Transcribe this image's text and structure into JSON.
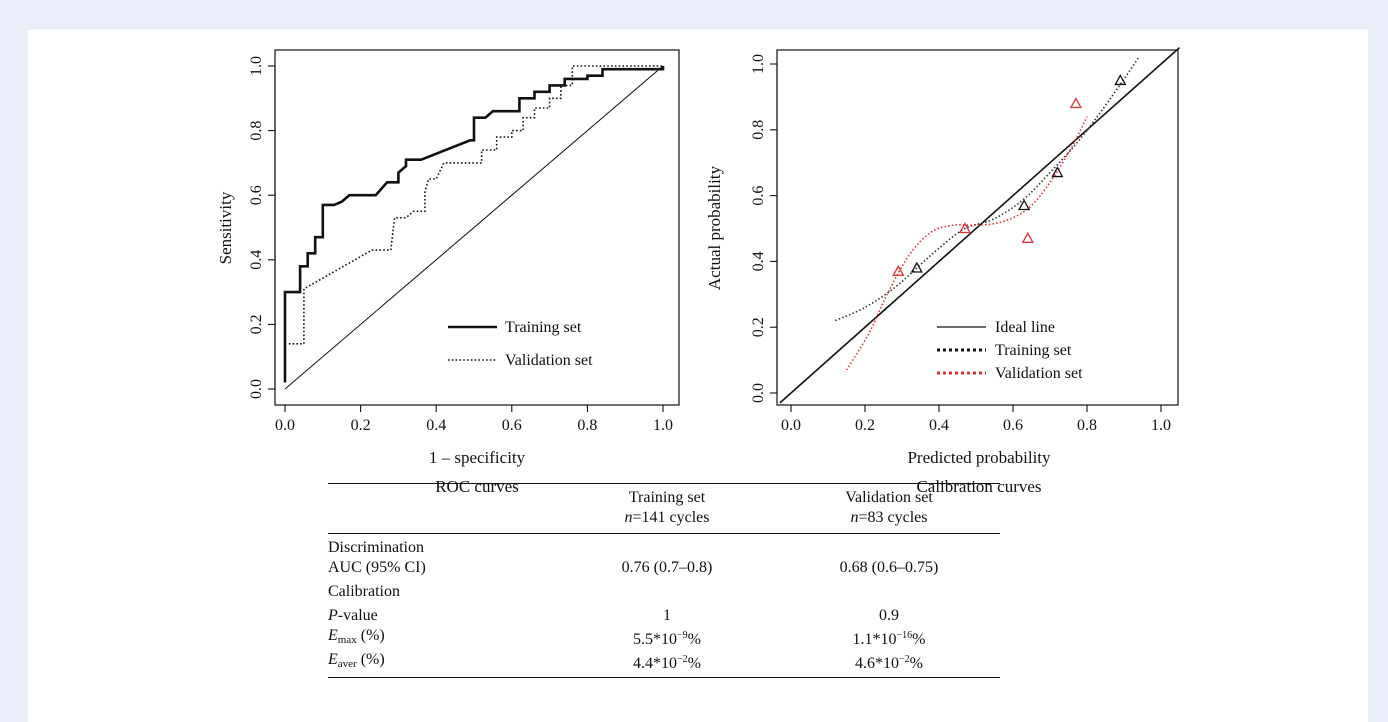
{
  "chart_data": [
    {
      "type": "line",
      "caption": "ROC curves",
      "xlabel": "1 – specificity",
      "ylabel": "Sensitivity",
      "xlim": [
        0,
        1
      ],
      "ylim": [
        0,
        1
      ],
      "x_ticks": [
        "0.0",
        "0.2",
        "0.4",
        "0.6",
        "0.8",
        "1.0"
      ],
      "y_ticks": [
        "0.0",
        "0.2",
        "0.4",
        "0.6",
        "0.8",
        "1.0"
      ],
      "legend_position": "bottom-right",
      "series": [
        {
          "name": "Training set",
          "style": "solid-thick",
          "points": [
            [
              0,
              0.02
            ],
            [
              0,
              0.3
            ],
            [
              0.04,
              0.3
            ],
            [
              0.04,
              0.38
            ],
            [
              0.06,
              0.38
            ],
            [
              0.06,
              0.42
            ],
            [
              0.08,
              0.42
            ],
            [
              0.08,
              0.47
            ],
            [
              0.1,
              0.47
            ],
            [
              0.1,
              0.57
            ],
            [
              0.13,
              0.57
            ],
            [
              0.15,
              0.58
            ],
            [
              0.17,
              0.6
            ],
            [
              0.24,
              0.6
            ],
            [
              0.27,
              0.64
            ],
            [
              0.3,
              0.64
            ],
            [
              0.3,
              0.67
            ],
            [
              0.32,
              0.69
            ],
            [
              0.32,
              0.71
            ],
            [
              0.36,
              0.71
            ],
            [
              0.49,
              0.77
            ],
            [
              0.5,
              0.77
            ],
            [
              0.5,
              0.84
            ],
            [
              0.53,
              0.84
            ],
            [
              0.55,
              0.86
            ],
            [
              0.62,
              0.86
            ],
            [
              0.62,
              0.9
            ],
            [
              0.66,
              0.9
            ],
            [
              0.66,
              0.92
            ],
            [
              0.7,
              0.92
            ],
            [
              0.7,
              0.94
            ],
            [
              0.74,
              0.94
            ],
            [
              0.74,
              0.96
            ],
            [
              0.8,
              0.96
            ],
            [
              0.8,
              0.97
            ],
            [
              0.84,
              0.97
            ],
            [
              0.84,
              0.99
            ],
            [
              1,
              0.99
            ],
            [
              1,
              1
            ]
          ]
        },
        {
          "name": "Validation set",
          "style": "dotted",
          "points": [
            [
              0.01,
              0.14
            ],
            [
              0.05,
              0.14
            ],
            [
              0.05,
              0.31
            ],
            [
              0.23,
              0.43
            ],
            [
              0.28,
              0.43
            ],
            [
              0.29,
              0.53
            ],
            [
              0.32,
              0.53
            ],
            [
              0.34,
              0.55
            ],
            [
              0.37,
              0.55
            ],
            [
              0.37,
              0.61
            ],
            [
              0.38,
              0.65
            ],
            [
              0.4,
              0.65
            ],
            [
              0.42,
              0.7
            ],
            [
              0.52,
              0.7
            ],
            [
              0.52,
              0.74
            ],
            [
              0.56,
              0.74
            ],
            [
              0.56,
              0.78
            ],
            [
              0.6,
              0.78
            ],
            [
              0.6,
              0.8
            ],
            [
              0.63,
              0.8
            ],
            [
              0.63,
              0.84
            ],
            [
              0.66,
              0.84
            ],
            [
              0.66,
              0.87
            ],
            [
              0.7,
              0.87
            ],
            [
              0.7,
              0.9
            ],
            [
              0.73,
              0.9
            ],
            [
              0.73,
              0.94
            ],
            [
              0.76,
              0.94
            ],
            [
              0.76,
              1
            ],
            [
              1,
              1
            ]
          ]
        },
        {
          "name": "",
          "style": "thin",
          "points": [
            [
              0,
              0
            ],
            [
              1,
              1
            ]
          ]
        }
      ]
    },
    {
      "type": "line",
      "caption": "Calibration curves",
      "xlabel": "Predicted probability",
      "ylabel": "Actual probability",
      "xlim": [
        0,
        1
      ],
      "ylim": [
        0,
        1
      ],
      "x_ticks": [
        "0.0",
        "0.2",
        "0.4",
        "0.6",
        "0.8",
        "1.0"
      ],
      "y_ticks": [
        "0.0",
        "0.2",
        "0.4",
        "0.6",
        "0.8",
        "1.0"
      ],
      "legend_position": "bottom-right",
      "series": [
        {
          "name": "Ideal line",
          "style": "solid",
          "points": [
            [
              -0.03,
              -0.03
            ],
            [
              1.05,
              1.05
            ]
          ]
        },
        {
          "name": "Training set",
          "style": "dotted-black",
          "curve": [
            [
              0.12,
              0.22
            ],
            [
              0.2,
              0.26
            ],
            [
              0.28,
              0.32
            ],
            [
              0.34,
              0.38
            ],
            [
              0.4,
              0.44
            ],
            [
              0.47,
              0.5
            ],
            [
              0.55,
              0.53
            ],
            [
              0.63,
              0.59
            ],
            [
              0.7,
              0.67
            ],
            [
              0.78,
              0.77
            ],
            [
              0.86,
              0.89
            ],
            [
              0.94,
              1.02
            ]
          ],
          "markers": [
            [
              0.34,
              0.38
            ],
            [
              0.63,
              0.57
            ],
            [
              0.72,
              0.67
            ],
            [
              0.89,
              0.95
            ]
          ]
        },
        {
          "name": "Validation set",
          "style": "dotted-red",
          "curve": [
            [
              0.15,
              0.07
            ],
            [
              0.21,
              0.18
            ],
            [
              0.26,
              0.3
            ],
            [
              0.32,
              0.42
            ],
            [
              0.38,
              0.49
            ],
            [
              0.44,
              0.51
            ],
            [
              0.5,
              0.51
            ],
            [
              0.57,
              0.52
            ],
            [
              0.64,
              0.56
            ],
            [
              0.7,
              0.64
            ],
            [
              0.76,
              0.75
            ],
            [
              0.8,
              0.84
            ]
          ],
          "markers": [
            [
              0.29,
              0.37
            ],
            [
              0.47,
              0.5
            ],
            [
              0.64,
              0.47
            ],
            [
              0.77,
              0.88
            ]
          ]
        }
      ]
    }
  ],
  "table": {
    "header": {
      "training_title": "Training set",
      "training_n_var": "n",
      "training_n_rest": "=141 cycles",
      "validation_title": "Validation set",
      "validation_n_var": "n",
      "validation_n_rest": "=83 cycles"
    },
    "discrimination": {
      "section": "Discrimination",
      "auc_label": "AUC (95% CI)",
      "auc_training": "0.76 (0.7–0.8)",
      "auc_validation": "0.68 (0.6–0.75)"
    },
    "calibration": {
      "section": "Calibration",
      "p_var": "P",
      "p_rest": "-value",
      "p_training": "1",
      "p_validation": "0.9",
      "emax_var": "E",
      "emax_sub": "max",
      "emax_unit": " (%)",
      "emax_training_base": "5.5*10",
      "emax_training_exp": "−9",
      "emax_training_unit": "%",
      "emax_validation_base": "1.1*10",
      "emax_validation_exp": "−16",
      "emax_validation_unit": "%",
      "eaver_var": "E",
      "eaver_sub": "aver",
      "eaver_unit": " (%)",
      "eaver_training_base": "4.4*10",
      "eaver_training_exp": "−2",
      "eaver_training_unit": "%",
      "eaver_validation_base": "4.6*10",
      "eaver_validation_exp": "−2",
      "eaver_validation_unit": "%"
    }
  }
}
